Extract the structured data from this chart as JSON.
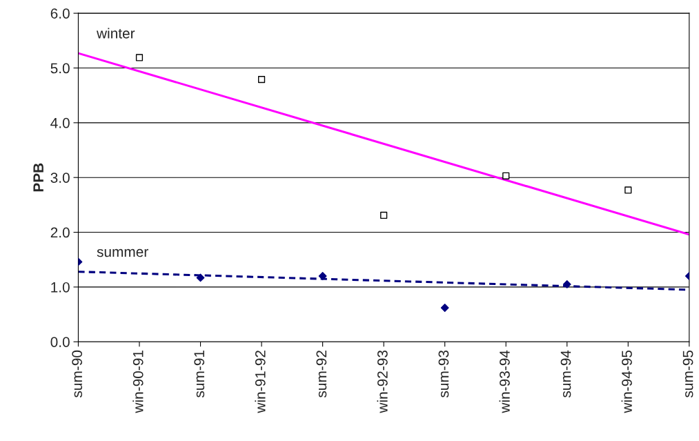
{
  "chart_data": {
    "type": "scatter",
    "ylabel": "PPB",
    "categories": [
      "sum-90",
      "win-90-91",
      "sum-91",
      "win-91-92",
      "sum-92",
      "win-92-93",
      "sum-93",
      "win-93-94",
      "sum-94",
      "win-94-95",
      "sum-95"
    ],
    "series": [
      {
        "color": "#000000",
        "marker": "square",
        "x": [
          "win-90-91",
          "win-91-92",
          "win-92-93",
          "win-93-94",
          "win-94-95"
        ],
        "values": [
          5.19,
          4.79,
          2.31,
          3.03,
          2.77
        ]
      },
      {
        "color": "#000080",
        "marker": "diamond",
        "x": [
          "sum-90",
          "sum-91",
          "sum-92",
          "sum-93",
          "sum-94",
          "sum-95"
        ],
        "values": [
          1.46,
          1.17,
          1.2,
          0.62,
          1.05,
          1.2
        ]
      },
      {
        "type": "line",
        "color": "#ff00ff",
        "line_style": "solid",
        "x": [
          "sum-90",
          "sum-95"
        ],
        "values": [
          5.27,
          1.96
        ]
      },
      {
        "type": "line",
        "color": "#000080",
        "line_style": "dashed",
        "x": [
          "sum-90",
          "sum-95"
        ],
        "values": [
          1.28,
          0.95
        ]
      }
    ],
    "annotations": [
      "winter",
      "summer"
    ],
    "ylim": [
      0,
      6
    ],
    "yticks": [
      {
        "value": 0,
        "label": "0.0"
      },
      {
        "value": 1,
        "label": "1.0"
      },
      {
        "value": 2,
        "label": "2.0"
      },
      {
        "value": 3,
        "label": "3.0"
      },
      {
        "value": 4,
        "label": "4.0"
      },
      {
        "value": 5,
        "label": "5.0"
      },
      {
        "value": 6,
        "label": "6.0"
      }
    ],
    "grid": "y",
    "legend": false
  }
}
